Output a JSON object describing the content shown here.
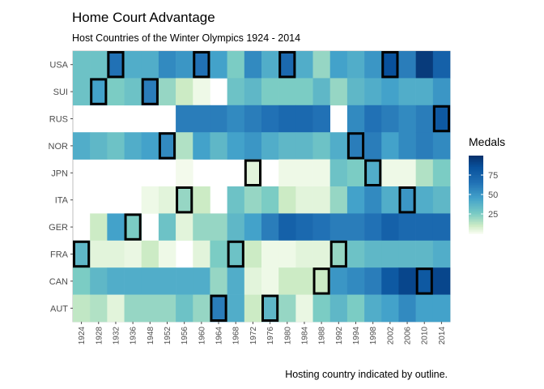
{
  "chart_data": {
    "type": "heatmap",
    "title": "Home Court Advantage",
    "subtitle": "Host Countries of the Winter Olympics 1924 - 2014",
    "caption": "Hosting country indicated by outline.",
    "x": [
      "1924",
      "1928",
      "1932",
      "1936",
      "1948",
      "1952",
      "1956",
      "1960",
      "1964",
      "1968",
      "1972",
      "1976",
      "1980",
      "1984",
      "1988",
      "1992",
      "1994",
      "1998",
      "2002",
      "2006",
      "2010",
      "2014"
    ],
    "y": [
      "USA",
      "SUI",
      "RUS",
      "NOR",
      "JPN",
      "ITA",
      "GER",
      "FRA",
      "CAN",
      "AUT"
    ],
    "legend": {
      "title": "Medals",
      "ticks": [
        25,
        50,
        75
      ],
      "min": 0,
      "max": 100
    },
    "values": [
      [
        30,
        30,
        65,
        40,
        40,
        55,
        50,
        65,
        45,
        25,
        55,
        40,
        70,
        40,
        20,
        45,
        40,
        50,
        85,
        60,
        95,
        75
      ],
      [
        30,
        45,
        25,
        30,
        60,
        20,
        10,
        2,
        null,
        30,
        35,
        25,
        25,
        25,
        35,
        20,
        35,
        40,
        45,
        40,
        40,
        50
      ],
      [
        null,
        null,
        null,
        null,
        null,
        null,
        60,
        60,
        60,
        55,
        60,
        65,
        70,
        70,
        65,
        null,
        55,
        65,
        60,
        55,
        60,
        80
      ],
      [
        40,
        35,
        30,
        40,
        45,
        55,
        15,
        45,
        35,
        45,
        50,
        40,
        35,
        35,
        30,
        40,
        60,
        60,
        45,
        55,
        60,
        55
      ],
      [
        null,
        null,
        null,
        null,
        null,
        null,
        1,
        null,
        null,
        null,
        5,
        null,
        2,
        2,
        2,
        30,
        25,
        40,
        2,
        2,
        15,
        25
      ],
      [
        null,
        null,
        null,
        null,
        2,
        5,
        20,
        10,
        null,
        30,
        20,
        25,
        10,
        5,
        5,
        20,
        45,
        55,
        40,
        50,
        40,
        35
      ],
      [
        null,
        10,
        45,
        25,
        null,
        30,
        5,
        20,
        20,
        35,
        45,
        60,
        75,
        70,
        65,
        60,
        60,
        65,
        75,
        70,
        70,
        70
      ],
      [
        35,
        5,
        5,
        3,
        10,
        2,
        null,
        5,
        25,
        30,
        10,
        2,
        2,
        5,
        5,
        20,
        30,
        35,
        35,
        35,
        35,
        40
      ],
      [
        25,
        35,
        40,
        40,
        40,
        40,
        40,
        40,
        20,
        40,
        5,
        2,
        10,
        10,
        10,
        50,
        55,
        60,
        80,
        90,
        80,
        90
      ],
      [
        12,
        15,
        5,
        20,
        20,
        20,
        30,
        20,
        60,
        40,
        10,
        35,
        20,
        3,
        25,
        35,
        25,
        40,
        45,
        55,
        45,
        45
      ]
    ],
    "hosts": [
      {
        "country": "USA",
        "year": "1932"
      },
      {
        "country": "SUI",
        "year": "1928"
      },
      {
        "country": "SUI",
        "year": "1948"
      },
      {
        "country": "NOR",
        "year": "1952"
      },
      {
        "country": "ITA",
        "year": "1956"
      },
      {
        "country": "USA",
        "year": "1960"
      },
      {
        "country": "AUT",
        "year": "1964"
      },
      {
        "country": "FRA",
        "year": "1968"
      },
      {
        "country": "JPN",
        "year": "1972"
      },
      {
        "country": "AUT",
        "year": "1976"
      },
      {
        "country": "USA",
        "year": "1980"
      },
      {
        "country": "CAN",
        "year": "1988"
      },
      {
        "country": "FRA",
        "year": "1992"
      },
      {
        "country": "NOR",
        "year": "1994"
      },
      {
        "country": "JPN",
        "year": "1998"
      },
      {
        "country": "USA",
        "year": "2002"
      },
      {
        "country": "ITA",
        "year": "2006"
      },
      {
        "country": "CAN",
        "year": "2010"
      },
      {
        "country": "RUS",
        "year": "2014"
      },
      {
        "country": "FRA",
        "year": "1924"
      },
      {
        "country": "GER",
        "year": "1936"
      }
    ],
    "colors": {
      "low": "#f7fcf0",
      "high": "#08306b",
      "outline": "#000000"
    }
  }
}
